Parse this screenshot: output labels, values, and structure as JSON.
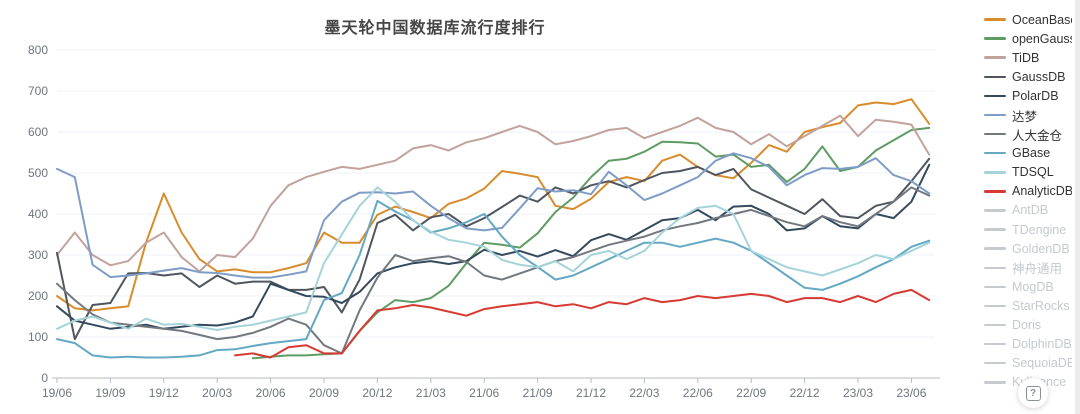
{
  "title": "墨天轮中国数据库流行度排行",
  "help_button": {
    "glyph": "?"
  },
  "chart_data": {
    "type": "line",
    "title": "墨天轮中国数据库流行度排行",
    "xlabel": "",
    "ylabel": "",
    "ylim": [
      0,
      800
    ],
    "yticks": [
      0,
      100,
      200,
      300,
      400,
      500,
      600,
      700,
      800
    ],
    "grid": true,
    "legend_position": "right",
    "x_months": [
      "19/06",
      "19/07",
      "19/08",
      "19/09",
      "19/10",
      "19/11",
      "19/12",
      "20/01",
      "20/02",
      "20/03",
      "20/04",
      "20/05",
      "20/06",
      "20/07",
      "20/08",
      "20/09",
      "20/10",
      "20/11",
      "20/12",
      "21/01",
      "21/02",
      "21/03",
      "21/04",
      "21/05",
      "21/06",
      "21/07",
      "21/08",
      "21/09",
      "21/10",
      "21/11",
      "21/12",
      "22/01",
      "22/02",
      "22/03",
      "22/04",
      "22/05",
      "22/06",
      "22/07",
      "22/08",
      "22/09",
      "22/10",
      "22/11",
      "22/12",
      "23/01",
      "23/02",
      "23/03",
      "23/04",
      "23/05",
      "23/06",
      "23/07"
    ],
    "x_tick_labels": [
      "19/06",
      "19/09",
      "19/12",
      "20/03",
      "20/06",
      "20/09",
      "20/12",
      "21/03",
      "21/06",
      "21/09",
      "21/12",
      "22/03",
      "22/06",
      "22/09",
      "22/12",
      "23/03",
      "23/06"
    ],
    "series": [
      {
        "name": "OceanBase",
        "color": "#D98C2B",
        "enabled": true,
        "values": [
          200,
          170,
          165,
          170,
          175,
          330,
          450,
          355,
          290,
          260,
          265,
          258,
          258,
          268,
          280,
          355,
          330,
          330,
          398,
          418,
          405,
          390,
          425,
          438,
          462,
          505,
          498,
          490,
          420,
          412,
          437,
          478,
          490,
          480,
          530,
          545,
          515,
          495,
          487,
          525,
          568,
          552,
          600,
          612,
          622,
          665,
          672,
          668,
          680,
          620
        ]
      },
      {
        "name": "openGauss",
        "color": "#5F9C63",
        "enabled": true,
        "values": [
          null,
          null,
          null,
          null,
          null,
          null,
          null,
          null,
          null,
          null,
          null,
          48,
          52,
          55,
          55,
          58,
          60,
          115,
          160,
          190,
          185,
          195,
          225,
          280,
          330,
          325,
          318,
          353,
          405,
          440,
          490,
          530,
          535,
          552,
          576,
          575,
          572,
          540,
          545,
          515,
          520,
          478,
          510,
          565,
          505,
          515,
          555,
          580,
          605,
          610
        ]
      },
      {
        "name": "TiDB",
        "color": "#C2A29C",
        "enabled": true,
        "values": [
          300,
          355,
          300,
          275,
          285,
          330,
          355,
          295,
          260,
          300,
          295,
          340,
          420,
          470,
          490,
          503,
          515,
          510,
          520,
          530,
          560,
          568,
          555,
          575,
          585,
          600,
          615,
          600,
          570,
          578,
          590,
          605,
          610,
          585,
          600,
          615,
          635,
          610,
          600,
          570,
          595,
          565,
          590,
          615,
          640,
          590,
          630,
          625,
          618,
          545
        ]
      },
      {
        "name": "GaussDB",
        "color": "#50565E",
        "enabled": true,
        "values": [
          305,
          95,
          178,
          183,
          255,
          256,
          250,
          255,
          222,
          250,
          230,
          235,
          235,
          215,
          215,
          222,
          160,
          240,
          378,
          398,
          360,
          392,
          400,
          370,
          390,
          417,
          445,
          430,
          465,
          450,
          470,
          480,
          465,
          483,
          500,
          505,
          515,
          495,
          510,
          460,
          440,
          420,
          400,
          436,
          395,
          390,
          420,
          430,
          480,
          535
        ]
      },
      {
        "name": "PolarDB",
        "color": "#344A5C",
        "enabled": true,
        "values": [
          175,
          140,
          130,
          120,
          125,
          130,
          120,
          125,
          130,
          128,
          135,
          150,
          230,
          215,
          200,
          198,
          183,
          210,
          255,
          270,
          280,
          285,
          278,
          285,
          313,
          300,
          310,
          296,
          312,
          297,
          336,
          351,
          337,
          361,
          385,
          390,
          410,
          385,
          418,
          420,
          400,
          360,
          365,
          395,
          370,
          365,
          400,
          390,
          430,
          520
        ]
      },
      {
        "name": "达梦",
        "color": "#7E9DC6",
        "enabled": true,
        "values": [
          510,
          490,
          276,
          246,
          250,
          255,
          262,
          268,
          258,
          256,
          250,
          245,
          245,
          252,
          260,
          385,
          430,
          452,
          453,
          450,
          455,
          420,
          390,
          365,
          360,
          366,
          414,
          463,
          455,
          458,
          448,
          503,
          470,
          434,
          450,
          470,
          490,
          530,
          548,
          536,
          515,
          470,
          495,
          512,
          510,
          515,
          536,
          495,
          480,
          450
        ]
      },
      {
        "name": "人大金仓",
        "color": "#73787F",
        "enabled": true,
        "values": [
          230,
          190,
          155,
          135,
          130,
          125,
          120,
          115,
          105,
          95,
          100,
          110,
          125,
          145,
          130,
          80,
          60,
          165,
          245,
          300,
          285,
          292,
          297,
          283,
          250,
          240,
          255,
          270,
          285,
          295,
          310,
          325,
          335,
          345,
          360,
          370,
          378,
          390,
          400,
          410,
          395,
          380,
          370,
          395,
          380,
          370,
          400,
          430,
          465,
          445
        ]
      },
      {
        "name": "GBase",
        "color": "#64A8C3",
        "enabled": true,
        "values": [
          95,
          85,
          55,
          50,
          52,
          50,
          50,
          52,
          55,
          68,
          70,
          78,
          85,
          90,
          95,
          190,
          207,
          300,
          432,
          406,
          385,
          355,
          365,
          380,
          400,
          345,
          300,
          271,
          240,
          250,
          270,
          290,
          310,
          330,
          330,
          320,
          330,
          340,
          330,
          310,
          280,
          250,
          220,
          215,
          230,
          248,
          270,
          290,
          320,
          335
        ]
      },
      {
        "name": "TDSQL",
        "color": "#A5D3DA",
        "enabled": true,
        "values": [
          120,
          140,
          150,
          135,
          120,
          145,
          130,
          132,
          125,
          117,
          125,
          130,
          140,
          150,
          160,
          280,
          350,
          420,
          465,
          430,
          385,
          357,
          337,
          330,
          320,
          288,
          276,
          270,
          285,
          260,
          300,
          310,
          290,
          310,
          355,
          390,
          415,
          420,
          400,
          310,
          290,
          270,
          260,
          250,
          265,
          280,
          300,
          290,
          310,
          330
        ]
      },
      {
        "name": "AnalyticDB",
        "color": "#D63A32",
        "enabled": true,
        "values": [
          null,
          null,
          null,
          null,
          null,
          null,
          null,
          null,
          null,
          null,
          55,
          60,
          50,
          75,
          80,
          60,
          60,
          115,
          165,
          170,
          178,
          172,
          162,
          152,
          168,
          175,
          180,
          185,
          175,
          180,
          170,
          185,
          180,
          195,
          185,
          190,
          200,
          195,
          200,
          205,
          200,
          185,
          195,
          195,
          185,
          200,
          185,
          205,
          215,
          190
        ]
      },
      {
        "name": "AntDB",
        "color": "#C7CBD0",
        "enabled": false,
        "values": []
      },
      {
        "name": "TDengine",
        "color": "#C7CBD0",
        "enabled": false,
        "values": []
      },
      {
        "name": "GoldenDB",
        "color": "#C7CBD0",
        "enabled": false,
        "values": []
      },
      {
        "name": "神舟通用",
        "color": "#C7CBD0",
        "enabled": false,
        "values": []
      },
      {
        "name": "MogDB",
        "color": "#C7CBD0",
        "enabled": false,
        "values": []
      },
      {
        "name": "StarRocks",
        "color": "#C7CBD0",
        "enabled": false,
        "values": []
      },
      {
        "name": "Doris",
        "color": "#C7CBD0",
        "enabled": false,
        "values": []
      },
      {
        "name": "DolphinDB",
        "color": "#C7CBD0",
        "enabled": false,
        "values": []
      },
      {
        "name": "SequoiaDB",
        "color": "#C7CBD0",
        "enabled": false,
        "values": []
      },
      {
        "name": "Kyligence",
        "color": "#C7CBD0",
        "enabled": false,
        "values": []
      }
    ],
    "axis_style": {
      "label_color": "#70757E",
      "axis_line_color": "#B5B9C2",
      "grid_color": "#EDF1F7",
      "label_font_size": 12
    }
  }
}
